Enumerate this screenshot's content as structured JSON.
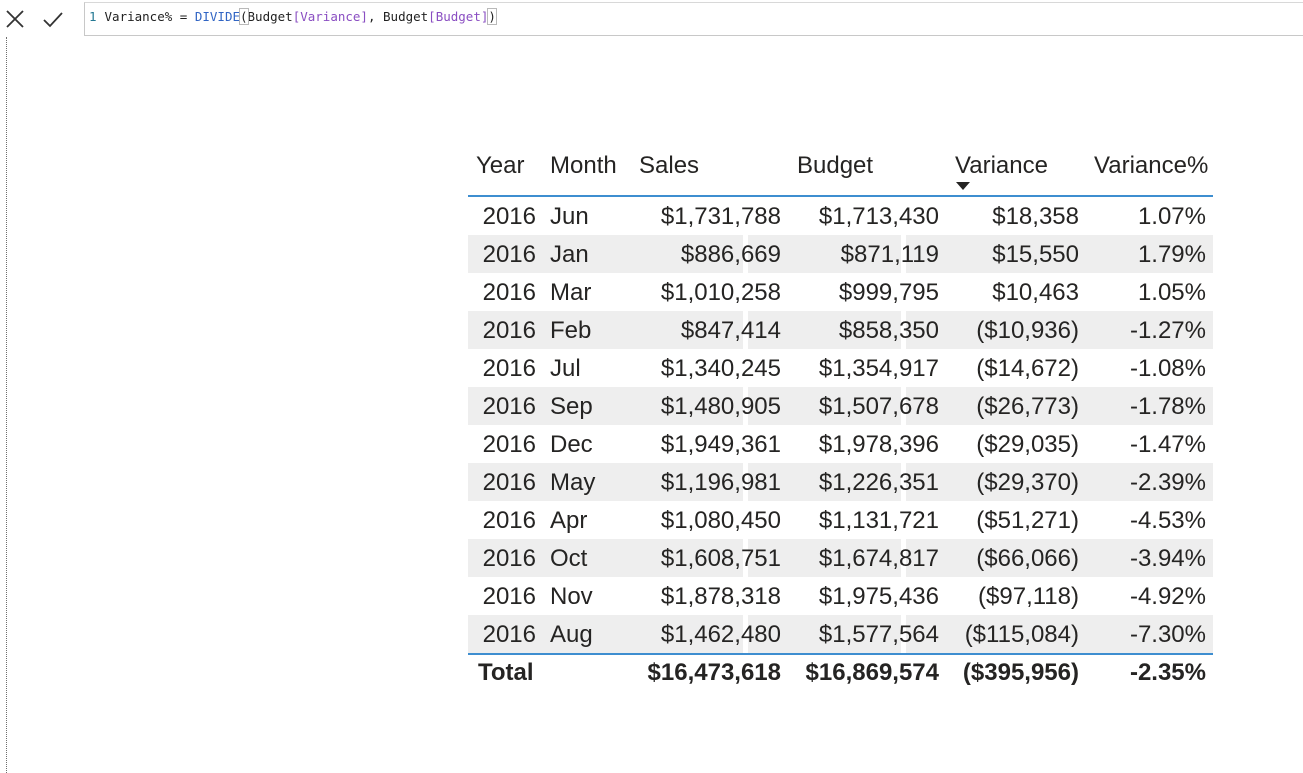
{
  "formula_bar": {
    "line_number": "1",
    "formula_prefix": "Variance% = ",
    "formula_function": "DIVIDE",
    "formula_open_paren": "(",
    "formula_table1": "Budget",
    "formula_col1": "[Variance]",
    "formula_sep": ", ",
    "formula_table2": "Budget",
    "formula_col2": "[Budget]",
    "formula_close_paren": ")",
    "cancel_icon": "close-x-icon",
    "commit_icon": "checkmark-icon"
  },
  "table": {
    "headers": {
      "year": "Year",
      "month": "Month",
      "sales": "Sales",
      "budget": "Budget",
      "variance": "Variance",
      "variance_pct": "Variance%"
    },
    "sorted_column": "Variance",
    "sort_direction": "descending",
    "rows": [
      {
        "year": "2016",
        "month": "Jun",
        "sales": "$1,731,788",
        "budget": "$1,713,430",
        "variance": "$18,358",
        "variance_pct": "1.07%"
      },
      {
        "year": "2016",
        "month": "Jan",
        "sales": "$886,669",
        "budget": "$871,119",
        "variance": "$15,550",
        "variance_pct": "1.79%"
      },
      {
        "year": "2016",
        "month": "Mar",
        "sales": "$1,010,258",
        "budget": "$999,795",
        "variance": "$10,463",
        "variance_pct": "1.05%"
      },
      {
        "year": "2016",
        "month": "Feb",
        "sales": "$847,414",
        "budget": "$858,350",
        "variance": "($10,936)",
        "variance_pct": "-1.27%"
      },
      {
        "year": "2016",
        "month": "Jul",
        "sales": "$1,340,245",
        "budget": "$1,354,917",
        "variance": "($14,672)",
        "variance_pct": "-1.08%"
      },
      {
        "year": "2016",
        "month": "Sep",
        "sales": "$1,480,905",
        "budget": "$1,507,678",
        "variance": "($26,773)",
        "variance_pct": "-1.78%"
      },
      {
        "year": "2016",
        "month": "Dec",
        "sales": "$1,949,361",
        "budget": "$1,978,396",
        "variance": "($29,035)",
        "variance_pct": "-1.47%"
      },
      {
        "year": "2016",
        "month": "May",
        "sales": "$1,196,981",
        "budget": "$1,226,351",
        "variance": "($29,370)",
        "variance_pct": "-2.39%"
      },
      {
        "year": "2016",
        "month": "Apr",
        "sales": "$1,080,450",
        "budget": "$1,131,721",
        "variance": "($51,271)",
        "variance_pct": "-4.53%"
      },
      {
        "year": "2016",
        "month": "Oct",
        "sales": "$1,608,751",
        "budget": "$1,674,817",
        "variance": "($66,066)",
        "variance_pct": "-3.94%"
      },
      {
        "year": "2016",
        "month": "Nov",
        "sales": "$1,878,318",
        "budget": "$1,975,436",
        "variance": "($97,118)",
        "variance_pct": "-4.92%"
      },
      {
        "year": "2016",
        "month": "Aug",
        "sales": "$1,462,480",
        "budget": "$1,577,564",
        "variance": "($115,084)",
        "variance_pct": "-7.30%"
      }
    ],
    "total": {
      "label": "Total",
      "sales": "$16,473,618",
      "budget": "$16,869,574",
      "variance": "($395,956)",
      "variance_pct": "-2.35%"
    },
    "colors": {
      "accent_border": "#3e8ed0",
      "alt_row": "#eeeeee",
      "text": "#252423"
    }
  }
}
